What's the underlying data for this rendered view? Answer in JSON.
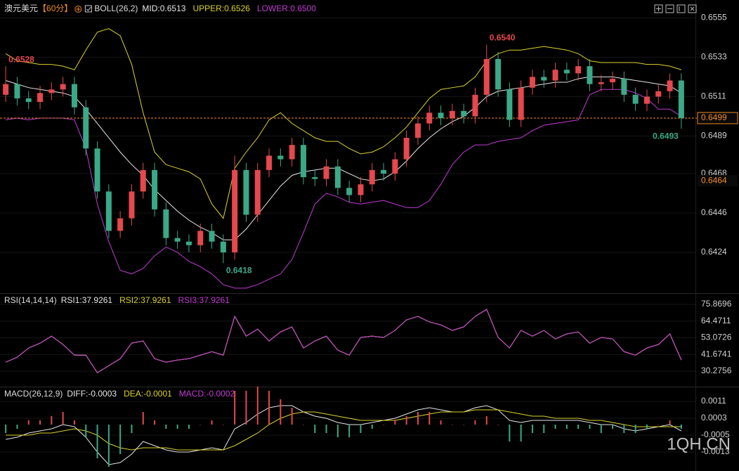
{
  "watermark": "1QH.CN",
  "chart_data": [
    {
      "type": "candlestick",
      "title": "澳元美元",
      "period": "【60分】",
      "indicator": "BOLL(26,2)",
      "up_color": "#e5484d",
      "down_color": "#3aa987",
      "open": [
        0.6512,
        0.6518,
        0.651,
        0.6508,
        0.6513,
        0.6515,
        0.6518,
        0.6505,
        0.6482,
        0.6458,
        0.6436,
        0.6443,
        0.6458,
        0.647,
        0.6448,
        0.6432,
        0.643,
        0.6428,
        0.6436,
        0.643,
        0.6424,
        0.647,
        0.6445,
        0.647,
        0.6478,
        0.6476,
        0.6484,
        0.6466,
        0.6465,
        0.6472,
        0.646,
        0.6456,
        0.6462,
        0.647,
        0.6468,
        0.6476,
        0.6488,
        0.6496,
        0.6502,
        0.6499,
        0.6503,
        0.65,
        0.6512,
        0.6532,
        0.6515,
        0.6498,
        0.6516,
        0.6522,
        0.652,
        0.6526,
        0.6524,
        0.6528,
        0.6518,
        0.6519,
        0.6521,
        0.6512,
        0.6507,
        0.6511,
        0.6514,
        0.652
      ],
      "high": [
        0.6528,
        0.6522,
        0.6514,
        0.6517,
        0.6519,
        0.6522,
        0.6522,
        0.6509,
        0.6486,
        0.6462,
        0.6447,
        0.6462,
        0.6474,
        0.6474,
        0.6452,
        0.6436,
        0.6434,
        0.644,
        0.644,
        0.6434,
        0.6478,
        0.6474,
        0.6474,
        0.6482,
        0.6482,
        0.6488,
        0.6488,
        0.647,
        0.6476,
        0.6476,
        0.6464,
        0.6466,
        0.6474,
        0.6474,
        0.648,
        0.6492,
        0.65,
        0.6506,
        0.6506,
        0.6507,
        0.6507,
        0.6516,
        0.654,
        0.6536,
        0.6519,
        0.652,
        0.6526,
        0.6526,
        0.653,
        0.653,
        0.6532,
        0.6532,
        0.6523,
        0.6525,
        0.6525,
        0.6516,
        0.6515,
        0.6518,
        0.6524,
        0.6524
      ],
      "low": [
        0.6508,
        0.6506,
        0.6504,
        0.6504,
        0.6509,
        0.6511,
        0.6501,
        0.6478,
        0.6454,
        0.6432,
        0.6432,
        0.6439,
        0.6454,
        0.6444,
        0.6428,
        0.6426,
        0.6424,
        0.6424,
        0.6426,
        0.6418,
        0.642,
        0.6441,
        0.6441,
        0.6466,
        0.6472,
        0.6472,
        0.6462,
        0.6461,
        0.6461,
        0.6456,
        0.6452,
        0.6452,
        0.6458,
        0.6464,
        0.6464,
        0.6472,
        0.6484,
        0.6492,
        0.6495,
        0.6495,
        0.6496,
        0.6496,
        0.6508,
        0.6511,
        0.6494,
        0.6494,
        0.6512,
        0.6516,
        0.6516,
        0.652,
        0.652,
        0.6514,
        0.6514,
        0.6515,
        0.6508,
        0.6503,
        0.6503,
        0.6507,
        0.651,
        0.6493
      ],
      "close": [
        0.6518,
        0.651,
        0.6508,
        0.6513,
        0.6515,
        0.6518,
        0.6505,
        0.6482,
        0.6458,
        0.6436,
        0.6443,
        0.6458,
        0.647,
        0.6448,
        0.6432,
        0.643,
        0.6428,
        0.6436,
        0.643,
        0.6424,
        0.647,
        0.6445,
        0.647,
        0.6478,
        0.6476,
        0.6484,
        0.6466,
        0.6465,
        0.6472,
        0.646,
        0.6456,
        0.6462,
        0.647,
        0.6468,
        0.6476,
        0.6488,
        0.6496,
        0.6502,
        0.6499,
        0.6503,
        0.65,
        0.6512,
        0.6532,
        0.6515,
        0.6498,
        0.6516,
        0.6522,
        0.652,
        0.6526,
        0.6524,
        0.6528,
        0.6518,
        0.6519,
        0.6521,
        0.6512,
        0.6507,
        0.6511,
        0.6514,
        0.652,
        0.6499
      ],
      "series": [
        {
          "name": "MID:0.6513",
          "color": "#e6e6e6",
          "values": [
            0.652,
            0.6518,
            0.6516,
            0.6515,
            0.6514,
            0.6513,
            0.6511,
            0.6504,
            0.6496,
            0.6488,
            0.648,
            0.6473,
            0.6467,
            0.6459,
            0.6453,
            0.6447,
            0.6442,
            0.6438,
            0.6435,
            0.6431,
            0.6431,
            0.6437,
            0.6445,
            0.6453,
            0.6461,
            0.6467,
            0.6469,
            0.647,
            0.6471,
            0.6471,
            0.6468,
            0.6465,
            0.6464,
            0.6465,
            0.6469,
            0.6475,
            0.6482,
            0.6488,
            0.6493,
            0.6497,
            0.65,
            0.6505,
            0.6511,
            0.6514,
            0.6515,
            0.6516,
            0.6517,
            0.6518,
            0.6519,
            0.6519,
            0.6521,
            0.6522,
            0.6522,
            0.6522,
            0.6521,
            0.652,
            0.6519,
            0.6518,
            0.6517,
            0.6513
          ]
        },
        {
          "name": "UPPER:0.6526",
          "color": "#dcd22e",
          "values": [
            0.6535,
            0.6531,
            0.653,
            0.6529,
            0.6529,
            0.6528,
            0.6526,
            0.6537,
            0.6547,
            0.6549,
            0.6545,
            0.6529,
            0.6502,
            0.648,
            0.6473,
            0.6471,
            0.6469,
            0.6465,
            0.6451,
            0.6443,
            0.6471,
            0.648,
            0.6488,
            0.6498,
            0.6502,
            0.6496,
            0.6492,
            0.6488,
            0.6486,
            0.6486,
            0.6482,
            0.6479,
            0.648,
            0.6483,
            0.6488,
            0.6494,
            0.6502,
            0.651,
            0.6515,
            0.6516,
            0.6517,
            0.6522,
            0.6531,
            0.6535,
            0.6537,
            0.6537,
            0.6538,
            0.6539,
            0.6538,
            0.6537,
            0.6535,
            0.6531,
            0.653,
            0.653,
            0.653,
            0.653,
            0.6529,
            0.6529,
            0.6528,
            0.6526
          ]
        },
        {
          "name": "LOWER:0.6500",
          "color": "#c23bd4",
          "values": [
            0.6498,
            0.6499,
            0.6498,
            0.6499,
            0.6499,
            0.6499,
            0.6498,
            0.6482,
            0.6451,
            0.643,
            0.6414,
            0.6412,
            0.6415,
            0.6422,
            0.6427,
            0.6424,
            0.6419,
            0.6416,
            0.6412,
            0.6406,
            0.6404,
            0.6404,
            0.6406,
            0.6409,
            0.6412,
            0.642,
            0.6435,
            0.6451,
            0.6457,
            0.6455,
            0.6452,
            0.6451,
            0.6452,
            0.6453,
            0.6451,
            0.6449,
            0.6449,
            0.6453,
            0.6462,
            0.6473,
            0.648,
            0.6484,
            0.6484,
            0.6486,
            0.6487,
            0.6488,
            0.6492,
            0.6495,
            0.6496,
            0.6497,
            0.6498,
            0.6512,
            0.6515,
            0.6515,
            0.6515,
            0.6513,
            0.651,
            0.6504,
            0.6504,
            0.65
          ]
        }
      ],
      "extremes": [
        0.6528,
        {
          "value": 0.654,
          "label": "0.6540"
        },
        0.6418,
        0.6493
      ],
      "last_price": 0.6499,
      "price_tags": [
        0.6464
      ],
      "ylim": [
        0.6402,
        0.6563
      ],
      "yticks": [
        0.6555,
        0.6533,
        0.6511,
        0.6489,
        0.6468,
        0.6446,
        0.6424
      ]
    },
    {
      "type": "line",
      "title": "RSI(14,14,14)",
      "series": [
        {
          "name": "RSI1:37.9261",
          "color": "#e6e6e6",
          "values": [
            36.4,
            39.8,
            46.1,
            49.4,
            54.2,
            48.5,
            41.2,
            41.2,
            29.2,
            34.0,
            38.8,
            49.4,
            50.9,
            38.8,
            36.4,
            37.9,
            38.8,
            41.2,
            43.6,
            41.2,
            67.7,
            54.2,
            59.0,
            50.9,
            57.1,
            60.5,
            46.1,
            50.9,
            54.2,
            44.6,
            41.2,
            53.3,
            54.2,
            53.3,
            58.1,
            65.3,
            67.7,
            63.9,
            61.9,
            58.1,
            60.5,
            67.7,
            72.5,
            53.3,
            46.1,
            58.1,
            54.2,
            58.1,
            52.3,
            55.7,
            57.1,
            49.4,
            53.3,
            52.3,
            43.6,
            41.2,
            46.1,
            48.5,
            55.7,
            37.9261
          ]
        },
        {
          "name": "RSI2:37.9261",
          "color": "#dcd22e",
          "values": [
            36.4,
            39.8,
            46.1,
            49.4,
            54.2,
            48.5,
            41.2,
            41.2,
            29.2,
            34.0,
            38.8,
            49.4,
            50.9,
            38.8,
            36.4,
            37.9,
            38.8,
            41.2,
            43.6,
            41.2,
            67.7,
            54.2,
            59.0,
            50.9,
            57.1,
            60.5,
            46.1,
            50.9,
            54.2,
            44.6,
            41.2,
            53.3,
            54.2,
            53.3,
            58.1,
            65.3,
            67.7,
            63.9,
            61.9,
            58.1,
            60.5,
            67.7,
            72.5,
            53.3,
            46.1,
            58.1,
            54.2,
            58.1,
            52.3,
            55.7,
            57.1,
            49.4,
            53.3,
            52.3,
            43.6,
            41.2,
            46.1,
            48.5,
            55.7,
            37.9261
          ]
        },
        {
          "name": "RSI3:37.9261",
          "color": "#c23bd4",
          "values": [
            36.4,
            39.8,
            46.1,
            49.4,
            54.2,
            48.5,
            41.2,
            41.2,
            29.2,
            34.0,
            38.8,
            49.4,
            50.9,
            38.8,
            36.4,
            37.9,
            38.8,
            41.2,
            43.6,
            41.2,
            67.7,
            54.2,
            59.0,
            50.9,
            57.1,
            60.5,
            46.1,
            50.9,
            54.2,
            44.6,
            41.2,
            53.3,
            54.2,
            53.3,
            58.1,
            65.3,
            67.7,
            63.9,
            61.9,
            58.1,
            60.5,
            67.7,
            72.5,
            53.3,
            46.1,
            58.1,
            54.2,
            58.1,
            52.3,
            55.7,
            57.1,
            49.4,
            53.3,
            52.3,
            43.6,
            41.2,
            46.1,
            48.5,
            55.7,
            37.9261
          ]
        }
      ],
      "ylim": [
        20.66,
        82.12
      ],
      "yticks": [
        75.8696,
        64.4711,
        53.0726,
        41.6741,
        30.2756
      ]
    },
    {
      "type": "line",
      "title": "MACD(26,12,9)",
      "up_color": "#e5484d",
      "down_color": "#3aa987",
      "series": [
        {
          "name": "DIFF:-0.0003",
          "color": "#e6e6e6",
          "values": [
            -0.0007,
            -0.0006,
            -0.0004,
            -0.0003,
            -0.0002,
            0.0,
            -0.0001,
            -0.0006,
            -0.0013,
            -0.0019,
            -0.0018,
            -0.0014,
            -0.0008,
            -0.001,
            -0.0012,
            -0.0013,
            -0.0013,
            -0.0012,
            -0.0011,
            -0.0012,
            -0.0002,
            0.0001,
            0.0005,
            0.0008,
            0.0009,
            0.0009,
            0.0006,
            0.0004,
            0.0003,
            0.0001,
            0.0,
            0.0,
            0.0001,
            0.0002,
            0.0003,
            0.0005,
            0.0007,
            0.0008,
            0.0007,
            0.0006,
            0.0006,
            0.0008,
            0.0009,
            0.0007,
            0.0002,
            0.0001,
            0.0002,
            0.0002,
            0.0002,
            0.0002,
            0.0002,
            0.0001,
            0.0,
            0.0,
            -0.0002,
            -0.0003,
            -0.0002,
            -0.0001,
            0.0,
            -0.0003
          ]
        },
        {
          "name": "DEA:-0.0001",
          "color": "#dcd22e",
          "values": [
            -0.0005,
            -0.0005,
            -0.0005,
            -0.0004,
            -0.0004,
            -0.0003,
            -0.0002,
            -0.0003,
            -0.0005,
            -0.0009,
            -0.0011,
            -0.0012,
            -0.0011,
            -0.0011,
            -0.0011,
            -0.0012,
            -0.0012,
            -0.0012,
            -0.0012,
            -0.0012,
            -0.001,
            -0.0007,
            -0.0004,
            0.0,
            0.0003,
            0.0005,
            0.0006,
            0.0006,
            0.0005,
            0.0004,
            0.0003,
            0.0002,
            0.0002,
            0.0002,
            0.0002,
            0.0003,
            0.0004,
            0.0005,
            0.0006,
            0.0006,
            0.0006,
            0.0007,
            0.0007,
            0.0007,
            0.0006,
            0.0005,
            0.0004,
            0.0004,
            0.0003,
            0.0003,
            0.0003,
            0.0002,
            0.0002,
            0.0001,
            0.0,
            -0.0001,
            -0.0001,
            -0.0001,
            -0.0001,
            -0.0001
          ]
        },
        {
          "name": "MACD:-0.0002",
          "color": "#c23bd4",
          "type": "bar",
          "values": [
            -0.0004,
            -0.0002,
            0.0002,
            0.0002,
            0.0004,
            0.0006,
            0.0002,
            -0.0006,
            -0.0016,
            -0.002,
            -0.0014,
            -0.0004,
            0.0006,
            0.0002,
            -0.0002,
            -0.0002,
            -0.0002,
            0.0,
            0.0002,
            0.0,
            0.0016,
            0.0016,
            0.0018,
            0.0016,
            0.0012,
            0.0008,
            0.0,
            -0.0004,
            -0.0004,
            -0.0006,
            -0.0006,
            -0.0004,
            -0.0002,
            0.0,
            0.0002,
            0.0004,
            0.0006,
            0.0006,
            0.0002,
            0.0,
            0.0,
            0.0002,
            0.0004,
            0.0,
            -0.0008,
            -0.0008,
            -0.0004,
            -0.0004,
            -0.0002,
            -0.0002,
            -0.0002,
            -0.0002,
            -0.0004,
            -0.0002,
            -0.0004,
            -0.0004,
            -0.0002,
            0.0,
            0.0002,
            -0.0002
          ]
        }
      ],
      "ylim": [
        -0.0021,
        0.0017
      ],
      "yticks": [
        0.0011,
        0.0003,
        -0.0005,
        -0.0013
      ]
    }
  ]
}
